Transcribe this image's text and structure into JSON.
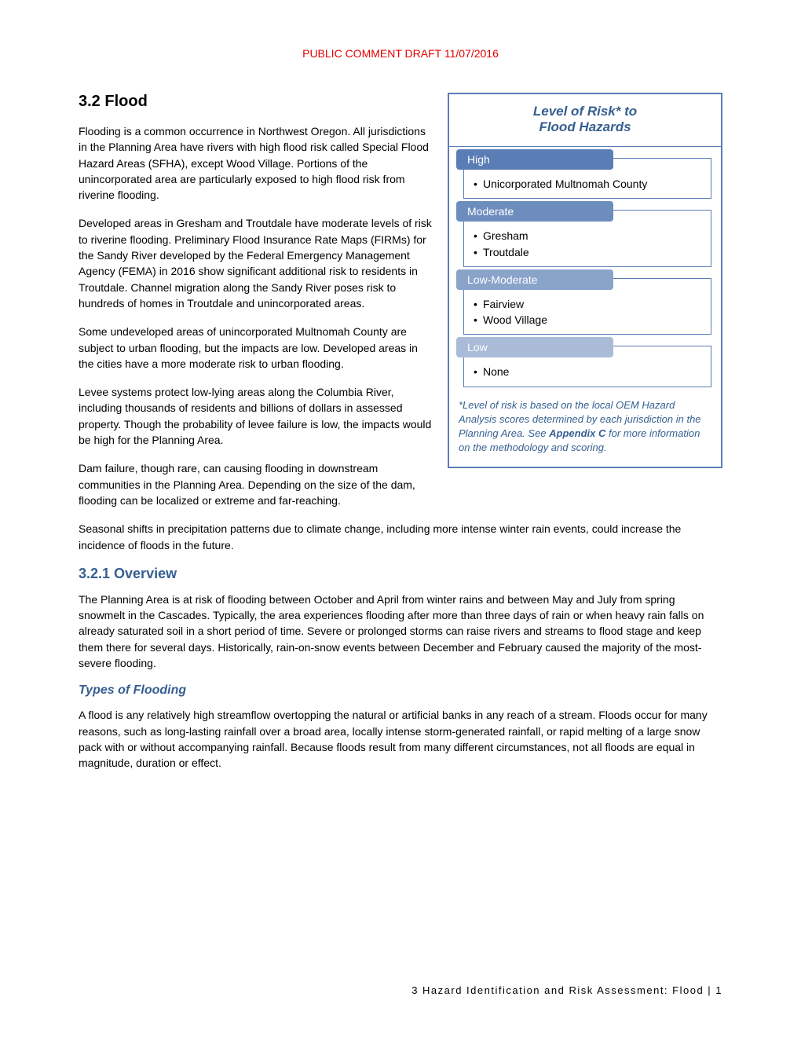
{
  "header": {
    "draft": "PUBLIC COMMENT DRAFT 11/07/2016"
  },
  "section": {
    "title": "3.2 Flood",
    "p1": "Flooding is a common occurrence in Northwest Oregon. All jurisdictions in the Planning Area have rivers with high flood risk called Special Flood Hazard Areas (SFHA), except Wood Village. Portions of the unincorporated area are particularly exposed to high flood risk from riverine flooding.",
    "p2": "Developed areas in Gresham and Troutdale have moderate levels of risk to riverine flooding. Preliminary Flood Insurance Rate Maps (FIRMs) for the Sandy River developed by the Federal Emergency Management Agency (FEMA) in 2016 show significant additional risk to residents in Troutdale. Channel migration along the Sandy River poses risk to hundreds of homes in Troutdale and unincorporated areas.",
    "p3": "Some undeveloped areas of unincorporated Multnomah County are subject to urban flooding, but the impacts are low. Developed areas in the cities have a more moderate risk to urban flooding.",
    "p4": "Levee systems protect low-lying areas along the Columbia River, including thousands of residents and billions of dollars in assessed property. Though the probability of levee failure is low, the impacts would be high for the Planning Area.",
    "p5": "Dam failure, though rare, can causing flooding in downstream communities in the Planning Area. Depending on the size of the dam, flooding can be localized or extreme and far-reaching.",
    "p6": "Seasonal shifts in precipitation patterns due to climate change, including more intense winter rain events, could increase the incidence of floods in the future.",
    "overview_title": "3.2.1 Overview",
    "overview_p": "The Planning Area is at risk of flooding between October and April from winter rains and between May and July from spring snowmelt in the Cascades. Typically, the area experiences flooding after more than three days of rain or when heavy rain falls on already saturated soil in a short period of time. Severe or prolonged storms can raise rivers and streams to flood stage and keep them there for several days. Historically, rain-on-snow events between December and February caused the majority of the most-severe flooding.",
    "types_title": "Types of Flooding",
    "types_p": "A flood is any relatively high streamflow overtopping the natural or artificial banks in any reach of a stream. Floods occur for many reasons, such as long-lasting rainfall over a broad area, locally intense storm-generated rainfall, or rapid melting of a large snow pack with or without accompanying rainfall. Because floods result from many different circumstances, not all floods are equal in magnitude, duration or effect."
  },
  "sidebar": {
    "title_l1": "Level of Risk* to",
    "title_l2": "Flood Hazards",
    "groups": [
      {
        "label": "High",
        "color": "#5a7db5",
        "items": [
          "Unicorporated Multnomah County"
        ]
      },
      {
        "label": "Moderate",
        "color": "#6d8dbe",
        "items": [
          "Gresham",
          "Troutdale"
        ]
      },
      {
        "label": "Low-Moderate",
        "color": "#8aa3c9",
        "items": [
          "Fairview",
          "Wood Village"
        ]
      },
      {
        "label": "Low",
        "color": "#a9bbd7",
        "items": [
          "None"
        ]
      }
    ],
    "footnote_pre": "*Level of risk is based on the local OEM Hazard Analysis scores determined by each jurisdiction in the Planning Area. See ",
    "footnote_bold": "Appendix C",
    "footnote_post": " for more information on the methodology and scoring."
  },
  "footer": {
    "text": "3 Hazard Identification and Risk Assessment: Flood | 1"
  }
}
